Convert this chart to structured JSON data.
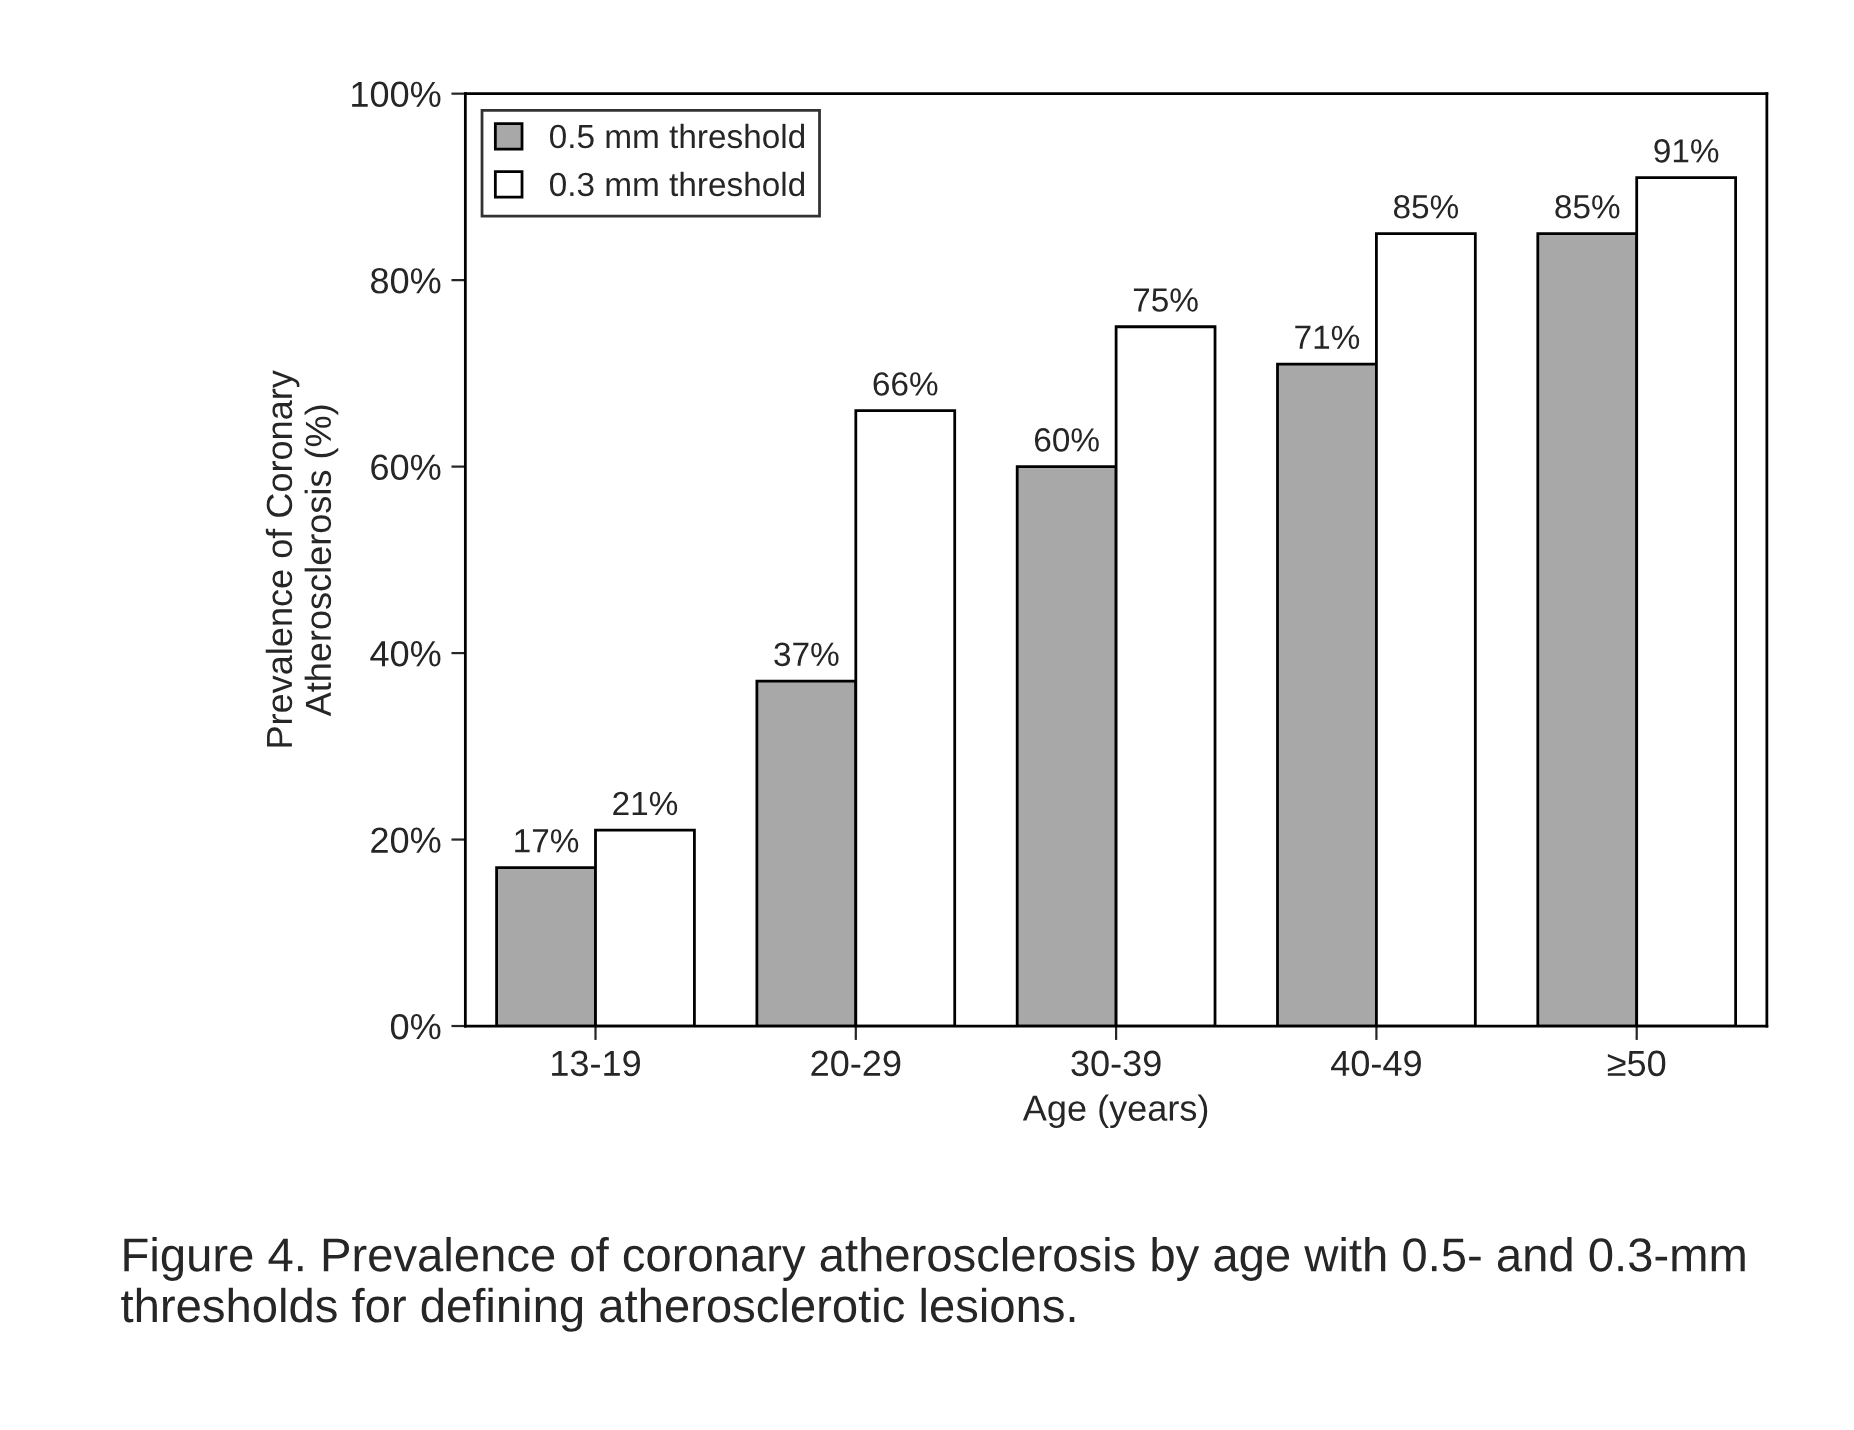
{
  "chart_data": {
    "type": "bar",
    "categories": [
      "13-19",
      "20-29",
      "30-39",
      "40-49",
      "≥50"
    ],
    "series": [
      {
        "name": "0.5 mm threshold",
        "color": "#a8a8a8",
        "values": [
          17,
          37,
          60,
          71,
          85
        ],
        "value_labels": [
          "17%",
          "37%",
          "60%",
          "71%",
          "85%"
        ]
      },
      {
        "name": "0.3 mm threshold",
        "color": "#ffffff",
        "values": [
          21,
          66,
          75,
          85,
          91
        ],
        "value_labels": [
          "21%",
          "66%",
          "75%",
          "85%",
          "91%"
        ]
      }
    ],
    "xlabel": "Age (years)",
    "ylabel": "Prevalence of Coronary\nAtherosclerosis (%)",
    "ylim": [
      0,
      100
    ],
    "yticks": [
      {
        "value": 0,
        "label": "0%"
      },
      {
        "value": 20,
        "label": "20%"
      },
      {
        "value": 40,
        "label": "40%"
      },
      {
        "value": 60,
        "label": "60%"
      },
      {
        "value": 80,
        "label": "80%"
      },
      {
        "value": 100,
        "label": "100%"
      }
    ],
    "legend": "top left",
    "grid": false,
    "annotations": [
      "Figure 4. Prevalence of coronary atherosclerosis by age with 0.5- and 0.3-mm thresholds for defining atherosclerotic lesions."
    ]
  }
}
